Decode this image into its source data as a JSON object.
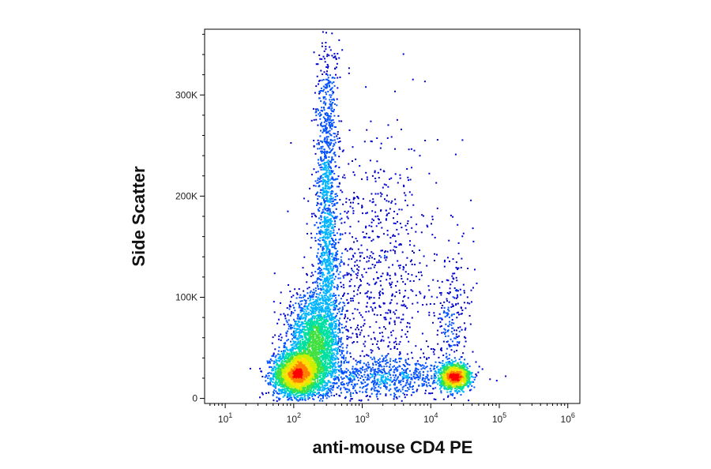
{
  "chart_data": {
    "type": "scatter",
    "title": "",
    "xlabel": "anti-mouse CD4 PE",
    "ylabel": "Side Scatter",
    "x_scale": "log",
    "xlim": [
      5,
      1500000
    ],
    "ylim": [
      -5000,
      365000
    ],
    "grid": false,
    "legend": "none",
    "x_ticks": [
      {
        "value": 10,
        "base": "10",
        "exp": "1"
      },
      {
        "value": 100,
        "base": "10",
        "exp": "2"
      },
      {
        "value": 1000,
        "base": "10",
        "exp": "3"
      },
      {
        "value": 10000,
        "base": "10",
        "exp": "4"
      },
      {
        "value": 100000,
        "base": "10",
        "exp": "5"
      },
      {
        "value": 1000000,
        "base": "10",
        "exp": "6"
      }
    ],
    "y_ticks": [
      {
        "value": 0,
        "label": "0"
      },
      {
        "value": 100000,
        "label": "100K"
      },
      {
        "value": 200000,
        "label": "200K"
      },
      {
        "value": 300000,
        "label": "300K"
      }
    ],
    "density_colormap": [
      "#0000cc",
      "#0050ff",
      "#00b4ff",
      "#00e0a0",
      "#40e040",
      "#c8f000",
      "#ffe000",
      "#ff8000",
      "#ff0000"
    ],
    "populations": [
      {
        "description": "CD4-negative cluster",
        "x_center": 110,
        "y_center": 25000,
        "x_spread_decades": 0.17,
        "y_spread": 11000,
        "points": 2600
      },
      {
        "description": "CD4-negative extension",
        "x_center": 200,
        "y_center": 55000,
        "x_spread_decades": 0.2,
        "y_spread": 25000,
        "points": 2200
      },
      {
        "description": "High side scatter column",
        "x_center": 300,
        "y_center": 180000,
        "x_spread_decades": 0.08,
        "y_spread": 90000,
        "points": 1400
      },
      {
        "description": "Diffuse intermediate spray",
        "x_center": 1500,
        "y_center": 120000,
        "x_spread_decades": 0.45,
        "y_spread": 70000,
        "points": 900
      },
      {
        "description": "Low background band",
        "x_center": 2500,
        "y_center": 22000,
        "x_spread_decades": 0.55,
        "y_spread": 10000,
        "points": 700
      },
      {
        "description": "CD4-positive cluster",
        "x_center": 22000,
        "y_center": 22000,
        "x_spread_decades": 0.11,
        "y_spread": 6000,
        "points": 1300
      },
      {
        "description": "CD4-positive upper tail",
        "x_center": 20000,
        "y_center": 80000,
        "x_spread_decades": 0.12,
        "y_spread": 35000,
        "points": 220
      }
    ]
  }
}
